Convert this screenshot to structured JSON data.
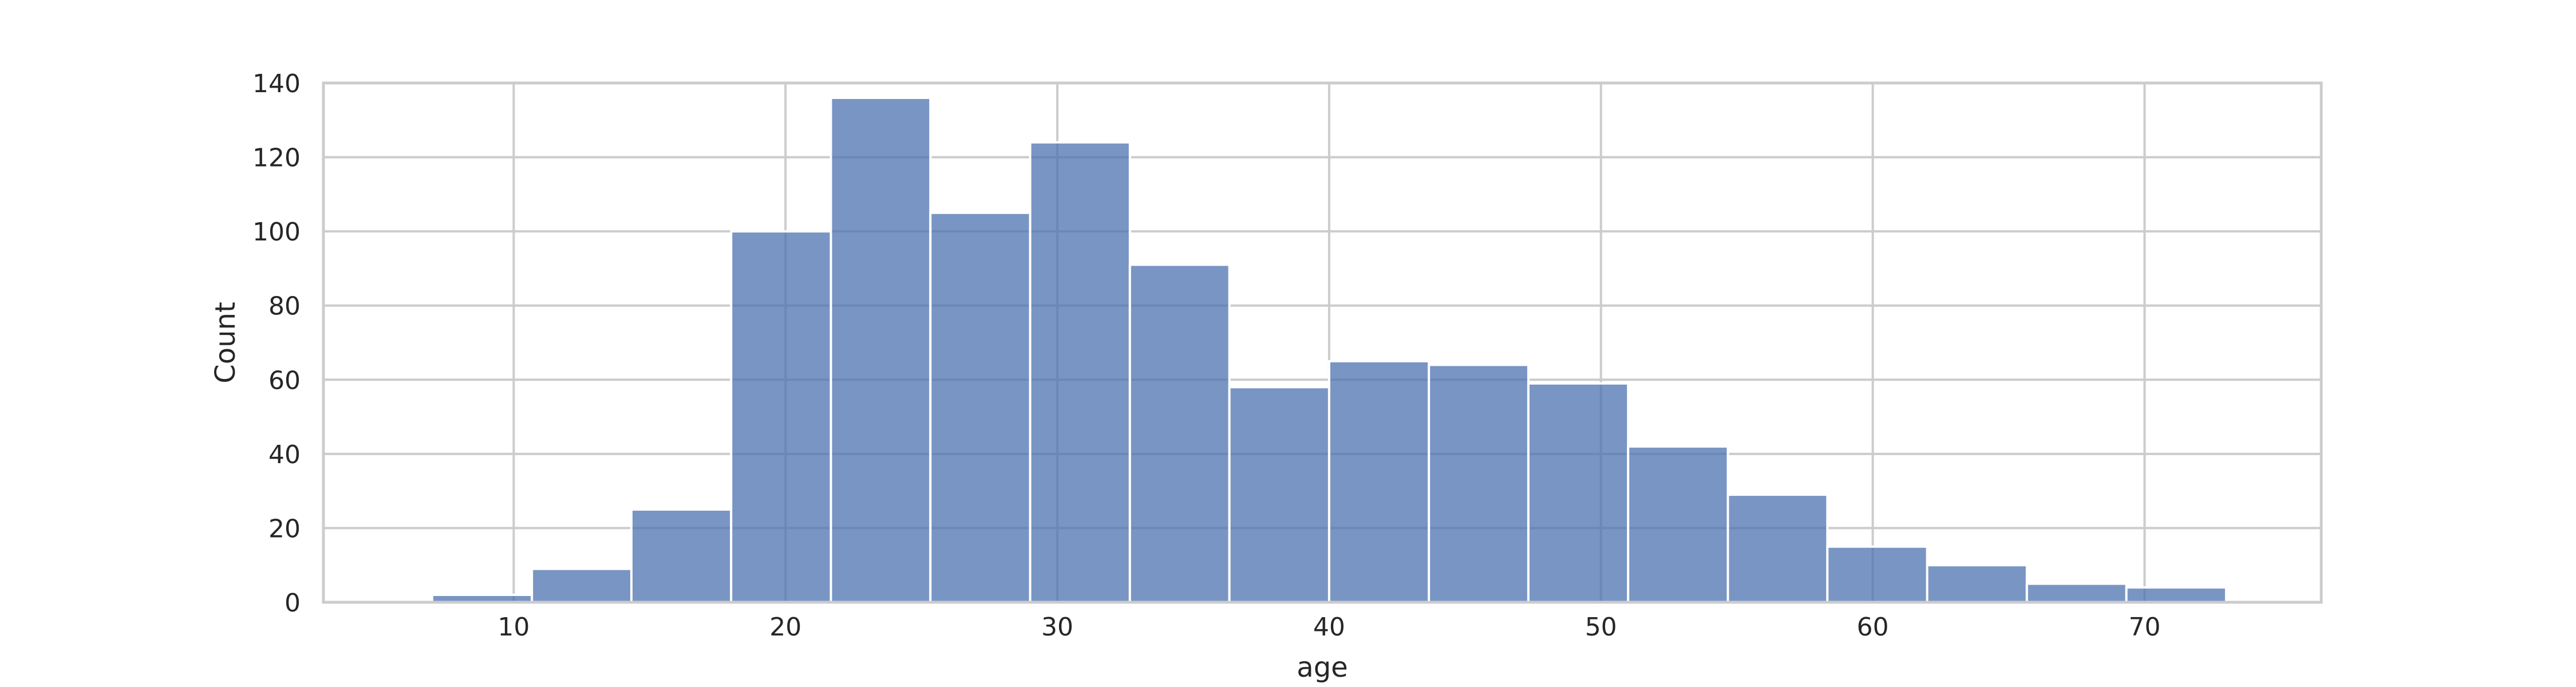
{
  "chart_data": {
    "type": "bar",
    "title": "",
    "xlabel": "age",
    "ylabel": "Count",
    "xlim": [
      3.0,
      76.5
    ],
    "ylim": [
      0,
      140
    ],
    "xticks": [
      10,
      20,
      30,
      40,
      50,
      60,
      70
    ],
    "yticks": [
      0,
      20,
      40,
      60,
      80,
      100,
      120,
      140
    ],
    "grid": true,
    "bin_edges": [
      7.0,
      10.67,
      14.33,
      18.0,
      21.67,
      25.33,
      29.0,
      32.67,
      36.33,
      40.0,
      43.67,
      47.33,
      51.0,
      54.67,
      58.33,
      62.0,
      65.67,
      69.33,
      73.0
    ],
    "values": [
      2,
      9,
      25,
      100,
      136,
      105,
      124,
      91,
      58,
      65,
      64,
      59,
      42,
      29,
      15,
      10,
      5,
      4
    ],
    "colors": {
      "bar": "#4c72b0",
      "grid": "#cccccc",
      "text": "#262626"
    }
  }
}
